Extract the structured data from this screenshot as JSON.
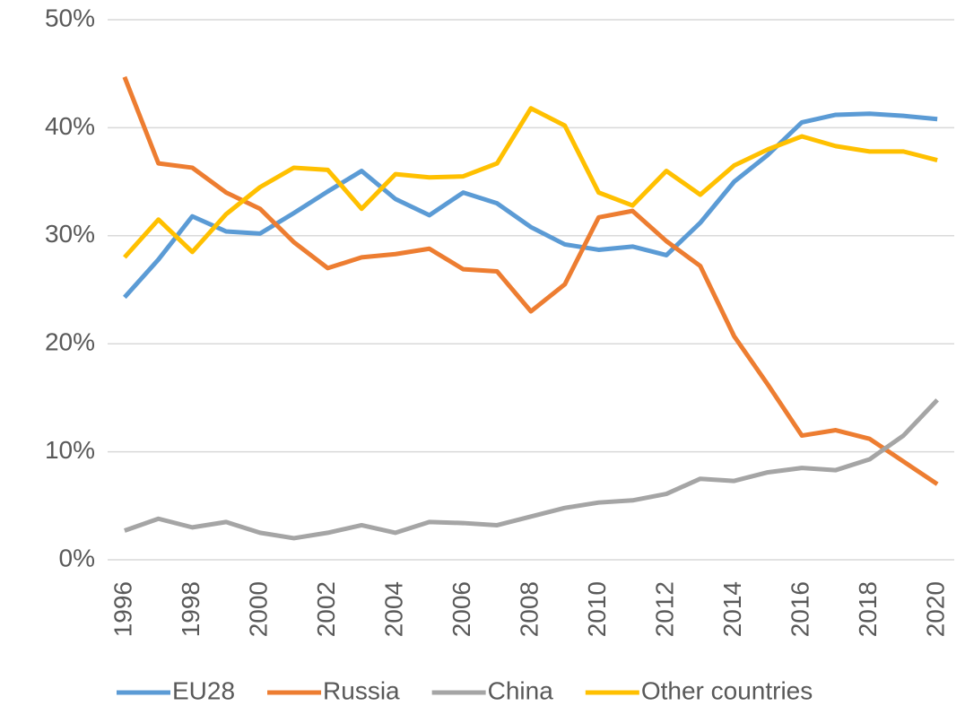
{
  "chart_data": {
    "type": "line",
    "x": [
      1996,
      1997,
      1998,
      1999,
      2000,
      2001,
      2002,
      2003,
      2004,
      2005,
      2006,
      2007,
      2008,
      2009,
      2010,
      2011,
      2012,
      2013,
      2014,
      2015,
      2016,
      2017,
      2018,
      2019,
      2020
    ],
    "xlim": [
      1995.5,
      2020.5
    ],
    "xticks": [
      1996,
      1998,
      2000,
      2002,
      2004,
      2006,
      2008,
      2010,
      2012,
      2014,
      2016,
      2018,
      2020
    ],
    "ylim": [
      0,
      50
    ],
    "yticks": [
      {
        "value": 0,
        "label": "0%"
      },
      {
        "value": 10,
        "label": "10%"
      },
      {
        "value": 20,
        "label": "20%"
      },
      {
        "value": 30,
        "label": "30%"
      },
      {
        "value": 40,
        "label": "40%"
      },
      {
        "value": 50,
        "label": "50%"
      }
    ],
    "grid": true,
    "legend": "bottom",
    "series": [
      {
        "name": "EU28",
        "color": "#5b9bd5",
        "values": [
          24.3,
          27.8,
          31.8,
          30.4,
          30.2,
          32.1,
          34.1,
          36.0,
          33.4,
          31.9,
          34.0,
          33.0,
          30.8,
          29.2,
          28.7,
          29.0,
          28.2,
          31.2,
          35.0,
          37.5,
          40.5,
          41.2,
          41.3,
          41.1,
          40.8
        ]
      },
      {
        "name": "Russia",
        "color": "#ed7d31",
        "values": [
          44.7,
          36.7,
          36.3,
          34.0,
          32.5,
          29.4,
          27.0,
          28.0,
          28.3,
          28.8,
          26.9,
          26.7,
          23.0,
          25.5,
          31.7,
          32.3,
          29.5,
          27.2,
          20.7,
          16.2,
          11.5,
          12.0,
          11.2,
          9.1,
          7.0
        ]
      },
      {
        "name": "China",
        "color": "#a5a5a5",
        "values": [
          2.7,
          3.8,
          3.0,
          3.5,
          2.5,
          2.0,
          2.5,
          3.2,
          2.5,
          3.5,
          3.4,
          3.2,
          4.0,
          4.8,
          5.3,
          5.5,
          6.1,
          7.5,
          7.3,
          8.1,
          8.5,
          8.3,
          9.3,
          11.5,
          14.8
        ]
      },
      {
        "name": "Other countries",
        "color": "#ffc000",
        "values": [
          28.0,
          31.5,
          28.5,
          32.0,
          34.5,
          36.3,
          36.1,
          32.5,
          35.7,
          35.4,
          35.5,
          36.7,
          41.8,
          40.2,
          34.0,
          32.8,
          36.0,
          33.8,
          36.5,
          38.0,
          39.2,
          38.3,
          37.8,
          37.8,
          37.0
        ]
      }
    ]
  }
}
